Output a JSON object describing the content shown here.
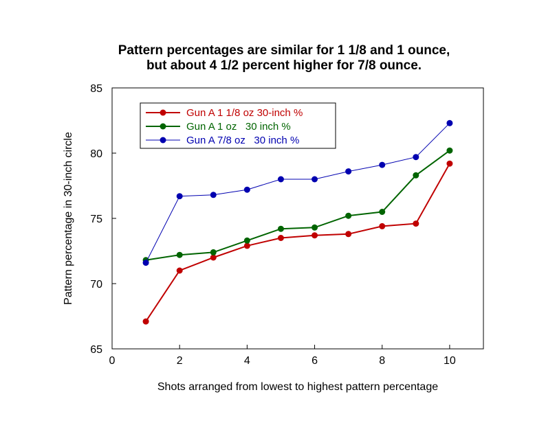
{
  "chart_data": {
    "type": "line",
    "title_lines": [
      "Pattern percentages are similar for 1 1/8 and 1 ounce,",
      "but about 4 1/2 percent higher for 7/8 ounce."
    ],
    "xlabel": "Shots arranged from lowest to highest pattern percentage",
    "ylabel": "Pattern percentage in 30-inch circle",
    "xlim": [
      0,
      11
    ],
    "ylim": [
      65,
      85
    ],
    "x_ticks": [
      0,
      2,
      4,
      6,
      8,
      10
    ],
    "y_ticks": [
      65,
      70,
      75,
      80,
      85
    ],
    "grid": false,
    "legend_position": "top-left",
    "x": [
      1,
      2,
      3,
      4,
      5,
      6,
      7,
      8,
      9,
      10
    ],
    "series": [
      {
        "name": "Gun A 1 1/8 oz 30-inch %",
        "color": "#c00000",
        "values": [
          67.1,
          71.0,
          72.0,
          72.9,
          73.5,
          73.7,
          73.8,
          74.4,
          74.6,
          79.2
        ]
      },
      {
        "name": "Gun A 1 oz   30 inch %",
        "color": "#006400",
        "values": [
          71.8,
          72.2,
          72.4,
          73.3,
          74.2,
          74.3,
          75.2,
          75.5,
          78.3,
          80.2
        ]
      },
      {
        "name": "Gun A 7/8 oz   30 inch %",
        "color": "#0000b0",
        "values": [
          71.6,
          76.7,
          76.8,
          77.2,
          78.0,
          78.0,
          78.6,
          79.1,
          79.7,
          82.3
        ]
      }
    ]
  }
}
